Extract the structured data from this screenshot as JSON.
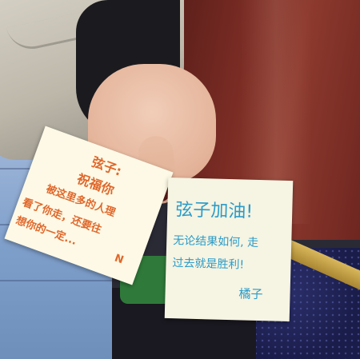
{
  "left_note": {
    "line1": "弦子:",
    "line2": "祝福你",
    "line3": "被这里多的人理",
    "line4": "看了你走，还要往",
    "line5": "想你的一定...",
    "line6": "N"
  },
  "right_note": {
    "line1": "弦子加油!",
    "line2": "无论结果如何, 走",
    "line3": "过去就是胜利!",
    "signature": "橘子"
  },
  "colors": {
    "orange_ink": "#e0672a",
    "blue_ink": "#2a9bc9",
    "paper": "#fbf8e4"
  }
}
